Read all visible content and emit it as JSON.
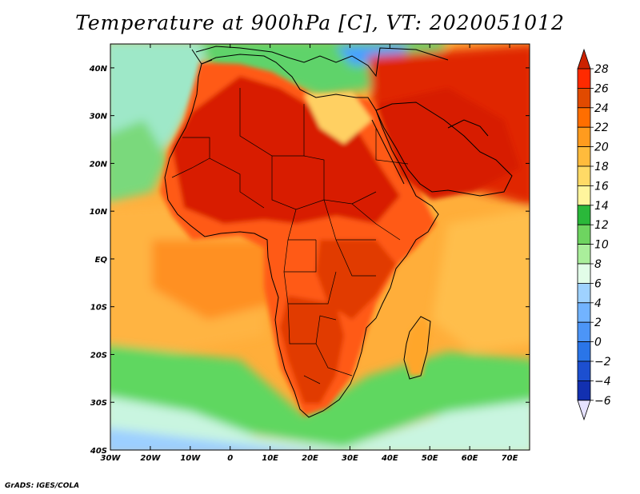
{
  "title": "Temperature at 900hPa [C], VT: 2020051012",
  "credit": "GrADS: IGES/COLA",
  "axes": {
    "lon_range": [
      -30,
      75
    ],
    "lat_range": [
      -40,
      45
    ],
    "lon_ticks": [
      {
        "value": -30,
        "label": "30W"
      },
      {
        "value": -20,
        "label": "20W"
      },
      {
        "value": -10,
        "label": "10W"
      },
      {
        "value": 0,
        "label": "0"
      },
      {
        "value": 10,
        "label": "10E"
      },
      {
        "value": 20,
        "label": "20E"
      },
      {
        "value": 30,
        "label": "30E"
      },
      {
        "value": 40,
        "label": "40E"
      },
      {
        "value": 50,
        "label": "50E"
      },
      {
        "value": 60,
        "label": "60E"
      },
      {
        "value": 70,
        "label": "70E"
      }
    ],
    "lat_ticks": [
      {
        "value": 40,
        "label": "40N"
      },
      {
        "value": 30,
        "label": "30N"
      },
      {
        "value": 20,
        "label": "20N"
      },
      {
        "value": 10,
        "label": "10N"
      },
      {
        "value": 0,
        "label": "EQ"
      },
      {
        "value": -10,
        "label": "10S"
      },
      {
        "value": -20,
        "label": "20S"
      },
      {
        "value": -30,
        "label": "30S"
      },
      {
        "value": -40,
        "label": "40S"
      }
    ]
  },
  "colorbar": {
    "levels": [
      28,
      26,
      24,
      22,
      20,
      18,
      16,
      14,
      12,
      10,
      8,
      6,
      4,
      2,
      0,
      -2,
      -4,
      -6
    ],
    "labels": [
      "28",
      "26",
      "24",
      "22",
      "20",
      "18",
      "16",
      "14",
      "12",
      "10",
      "8",
      "6",
      "4",
      "2",
      "0",
      "−2",
      "−4",
      "−6"
    ],
    "colors": [
      "#ff2a00",
      "#e14a00",
      "#ff6e00",
      "#ff9b1e",
      "#ffbb3c",
      "#ffda66",
      "#fff59d",
      "#2ab83a",
      "#6ed460",
      "#aaee9b",
      "#e2fde8",
      "#9fd2ff",
      "#72b3ff",
      "#4c95f7",
      "#2a75e8",
      "#1c4fd0",
      "#1230b0",
      "#0a1680"
    ],
    "over_color": "#cc2200",
    "under_color": "#e6e2ff"
  },
  "land_colors": {
    "hot": "#d71e00",
    "warm": "#ff5a10",
    "mild": "#ff9a22",
    "cool": "#ffd060",
    "med": "#6fd870",
    "ocean_warm": "#ffb43c",
    "ocean_cool": "#4fd05a",
    "south_ocean": "#c8f6dc"
  }
}
